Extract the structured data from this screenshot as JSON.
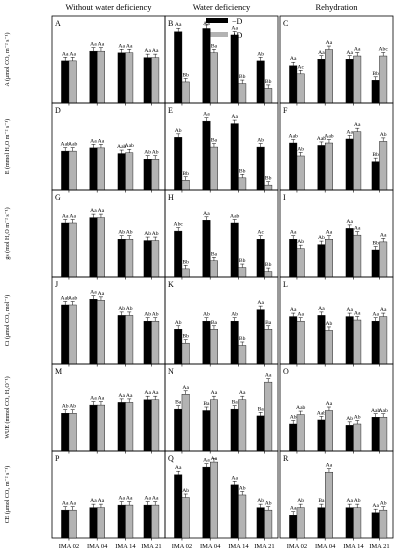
{
  "headers": [
    "Without water deficiency",
    "Water deficiency",
    "Rehydration"
  ],
  "legend": {
    "items": [
      {
        "label": "−D",
        "color": "#000000"
      },
      {
        "label": "+D",
        "color": "#b3b3b3"
      }
    ],
    "placement": "top"
  },
  "x_tick_labels": [
    "IMA 02",
    "IMA 04",
    "IMA 14",
    "IMA 21"
  ],
  "colors": {
    "minus_d": "#000000",
    "plus_d": "#b3b3b3"
  },
  "rows": [
    {
      "ylabel": "A (μmol CO₂ m⁻² s⁻¹)"
    },
    {
      "ylabel": "E (mmol H₂O m⁻² s⁻¹)"
    },
    {
      "ylabel": "gs (mol H₂O m⁻² s⁻¹)"
    },
    {
      "ylabel": "Ci (μmol CO₂ mol⁻¹)"
    },
    {
      "ylabel": "WUE (mmol CO₂ H₂O⁻¹)"
    },
    {
      "ylabel": "CE (μmol CO₂ m⁻² s⁻¹)"
    }
  ],
  "chart_data": [
    {
      "panel": "A",
      "type": "bar",
      "categories": [
        "IMA 02",
        "IMA 04",
        "IMA 14",
        "IMA 21"
      ],
      "series": [
        {
          "name": "−D",
          "values": [
            13,
            16,
            15.5,
            14
          ]
        },
        {
          "name": "+D",
          "values": [
            13,
            16,
            15.5,
            14
          ]
        }
      ],
      "labels": [
        [
          "Aa",
          "Aa"
        ],
        [
          "Aa",
          "Aa"
        ],
        [
          "Aa",
          "Aa"
        ],
        [
          "Aa",
          "Aa"
        ]
      ],
      "ylim": [
        0,
        25
      ]
    },
    {
      "panel": "B",
      "type": "bar",
      "categories": [
        "IMA 02",
        "IMA 04",
        "IMA 14",
        "IMA 21"
      ],
      "series": [
        {
          "name": "−D",
          "values": [
            22,
            23,
            21,
            13
          ]
        },
        {
          "name": "+D",
          "values": [
            6.5,
            15.5,
            6,
            4.5
          ]
        }
      ],
      "labels": [
        [
          "Aa",
          "Bb"
        ],
        [
          "Aa",
          "Ba"
        ],
        [
          "Aa",
          "Bb"
        ],
        [
          "Ab",
          "Bb"
        ]
      ],
      "ylim": [
        0,
        25
      ]
    },
    {
      "panel": "C",
      "type": "bar",
      "categories": [
        "IMA 02",
        "IMA 04",
        "IMA 14",
        "IMA 21"
      ],
      "series": [
        {
          "name": "−D",
          "values": [
            11.5,
            13.5,
            13.5,
            7
          ]
        },
        {
          "name": "+D",
          "values": [
            9,
            16.5,
            14.5,
            14.5
          ]
        }
      ],
      "labels": [
        [
          "Aa",
          "Ac"
        ],
        [
          "Aa",
          "Aa"
        ],
        [
          "Aa",
          "Aa"
        ],
        [
          "Bb",
          "Abc"
        ]
      ],
      "ylim": [
        0,
        25
      ]
    },
    {
      "panel": "D",
      "type": "bar",
      "categories": [
        "IMA 02",
        "IMA 04",
        "IMA 14",
        "IMA 21"
      ],
      "series": [
        {
          "name": "−D",
          "values": [
            4.8,
            5.2,
            4.5,
            3.8
          ]
        },
        {
          "name": "+D",
          "values": [
            4.8,
            5.2,
            4.6,
            3.8
          ]
        }
      ],
      "labels": [
        [
          "Aab",
          "Aab"
        ],
        [
          "Aa",
          "Aa"
        ],
        [
          "Aab",
          "Aab"
        ],
        [
          "Ab",
          "Ab"
        ]
      ],
      "ylim": [
        0,
        10
      ]
    },
    {
      "panel": "E",
      "type": "bar",
      "categories": [
        "IMA 02",
        "IMA 04",
        "IMA 14",
        "IMA 21"
      ],
      "series": [
        {
          "name": "−D",
          "values": [
            6.5,
            8.5,
            8.2,
            5.3
          ]
        },
        {
          "name": "+D",
          "values": [
            1.2,
            5.3,
            1.5,
            0.6
          ]
        }
      ],
      "labels": [
        [
          "Ab",
          "Bb"
        ],
        [
          "Aa",
          "Ba"
        ],
        [
          "Aa",
          "Bb"
        ],
        [
          "Ab",
          "Bb"
        ]
      ],
      "ylim": [
        0,
        10
      ]
    },
    {
      "panel": "F",
      "type": "bar",
      "categories": [
        "IMA 02",
        "IMA 04",
        "IMA 14",
        "IMA 21"
      ],
      "series": [
        {
          "name": "−D",
          "values": [
            5.8,
            5.5,
            6.3,
            3.5
          ]
        },
        {
          "name": "+D",
          "values": [
            4.2,
            5.8,
            7.2,
            6
          ]
        }
      ],
      "labels": [
        [
          "Aab",
          "Ab"
        ],
        [
          "Aab",
          "Aab"
        ],
        [
          "Aa",
          "Aa"
        ],
        [
          "Bb",
          "Ab"
        ]
      ],
      "ylim": [
        0,
        10
      ]
    },
    {
      "panel": "G",
      "type": "bar",
      "categories": [
        "IMA 02",
        "IMA 04",
        "IMA 14",
        "IMA 21"
      ],
      "series": [
        {
          "name": "−D",
          "values": [
            0.2,
            0.22,
            0.14,
            0.135
          ]
        },
        {
          "name": "+D",
          "values": [
            0.2,
            0.22,
            0.14,
            0.135
          ]
        }
      ],
      "labels": [
        [
          "Aa",
          "Aa"
        ],
        [
          "Aa",
          "Aa"
        ],
        [
          "Ab",
          "Ab"
        ],
        [
          "Ab",
          "Ab"
        ]
      ],
      "ylim": [
        0,
        0.3
      ]
    },
    {
      "panel": "H",
      "type": "bar",
      "categories": [
        "IMA 02",
        "IMA 04",
        "IMA 14",
        "IMA 21"
      ],
      "series": [
        {
          "name": "−D",
          "values": [
            0.17,
            0.21,
            0.2,
            0.14
          ]
        },
        {
          "name": "+D",
          "values": [
            0.03,
            0.06,
            0.035,
            0.02
          ]
        }
      ],
      "labels": [
        [
          "Abc",
          "Bb"
        ],
        [
          "Aa",
          "Ba"
        ],
        [
          "Aab",
          "Bb"
        ],
        [
          "Ac",
          "Bb"
        ]
      ],
      "ylim": [
        0,
        0.3
      ]
    },
    {
      "panel": "I",
      "type": "bar",
      "categories": [
        "IMA 02",
        "IMA 04",
        "IMA 14",
        "IMA 21"
      ],
      "series": [
        {
          "name": "−D",
          "values": [
            0.14,
            0.12,
            0.18,
            0.1
          ]
        },
        {
          "name": "+D",
          "values": [
            0.105,
            0.14,
            0.155,
            0.13
          ]
        }
      ],
      "labels": [
        [
          "Aa",
          "Ab"
        ],
        [
          "Ab",
          "Aa"
        ],
        [
          "Aa",
          "Aa"
        ],
        [
          "Bb",
          "Aa"
        ]
      ],
      "ylim": [
        0,
        0.3
      ]
    },
    {
      "panel": "J",
      "type": "bar",
      "categories": [
        "IMA 02",
        "IMA 04",
        "IMA 14",
        "IMA 21"
      ],
      "series": [
        {
          "name": "−D",
          "values": [
            255,
            280,
            210,
            185
          ]
        },
        {
          "name": "+D",
          "values": [
            255,
            275,
            210,
            185
          ]
        }
      ],
      "labels": [
        [
          "Aab",
          "Aab"
        ],
        [
          "Aa",
          "Aa"
        ],
        [
          "Ab",
          "Ab"
        ],
        [
          "Ab",
          "Ab"
        ]
      ],
      "ylim": [
        0,
        350
      ]
    },
    {
      "panel": "K",
      "type": "bar",
      "categories": [
        "IMA 02",
        "IMA 04",
        "IMA 14",
        "IMA 21"
      ],
      "series": [
        {
          "name": "−D",
          "values": [
            150,
            185,
            185,
            235
          ]
        },
        {
          "name": "+D",
          "values": [
            90,
            150,
            80,
            150
          ]
        }
      ],
      "labels": [
        [
          "Ab",
          "Bb"
        ],
        [
          "Ab",
          "Ba"
        ],
        [
          "Ab",
          "Bb"
        ],
        [
          "Aa",
          "Ba"
        ]
      ],
      "ylim": [
        0,
        350
      ]
    },
    {
      "panel": "L",
      "type": "bar",
      "categories": [
        "IMA 02",
        "IMA 04",
        "IMA 14",
        "IMA 21"
      ],
      "series": [
        {
          "name": "−D",
          "values": [
            205,
            210,
            205,
            185
          ]
        },
        {
          "name": "+D",
          "values": [
            185,
            145,
            190,
            205
          ]
        }
      ],
      "labels": [
        [
          "Aa",
          "Aa"
        ],
        [
          "Aa",
          "Ab"
        ],
        [
          "Aa",
          "Aa"
        ],
        [
          "Aa",
          "Aa"
        ]
      ],
      "ylim": [
        0,
        350
      ]
    },
    {
      "panel": "M",
      "type": "bar",
      "categories": [
        "IMA 02",
        "IMA 04",
        "IMA 14",
        "IMA 21"
      ],
      "series": [
        {
          "name": "−D",
          "values": [
            2.8,
            3.4,
            3.6,
            3.8
          ]
        },
        {
          "name": "+D",
          "values": [
            2.8,
            3.4,
            3.6,
            3.8
          ]
        }
      ],
      "labels": [
        [
          "Ab",
          "Ab"
        ],
        [
          "Aa",
          "Aa"
        ],
        [
          "Aa",
          "Aa"
        ],
        [
          "Aa",
          "Aa"
        ]
      ],
      "ylim": [
        0,
        6
      ]
    },
    {
      "panel": "N",
      "type": "bar",
      "categories": [
        "IMA 02",
        "IMA 04",
        "IMA 14",
        "IMA 21"
      ],
      "series": [
        {
          "name": "−D",
          "values": [
            3.1,
            3,
            3.1,
            2.6
          ]
        },
        {
          "name": "+D",
          "values": [
            4.2,
            3.8,
            3.8,
            5.1
          ]
        }
      ],
      "labels": [
        [
          "Ba",
          "Aa"
        ],
        [
          "Ba",
          "Aa"
        ],
        [
          "Ba",
          "Aa"
        ],
        [
          "Ba",
          "Aa"
        ]
      ],
      "ylim": [
        0,
        6
      ]
    },
    {
      "panel": "O",
      "type": "bar",
      "categories": [
        "IMA 02",
        "IMA 04",
        "IMA 14",
        "IMA 21"
      ],
      "series": [
        {
          "name": "−D",
          "values": [
            2,
            2.3,
            1.9,
            2.5
          ]
        },
        {
          "name": "+D",
          "values": [
            2.7,
            3,
            2,
            2.5
          ]
        }
      ],
      "labels": [
        [
          "Ab",
          "Aab"
        ],
        [
          "Aab",
          "Aa"
        ],
        [
          "Ab",
          "Ab"
        ],
        [
          "Aab",
          "Aab"
        ]
      ],
      "ylim": [
        0,
        6
      ]
    },
    {
      "panel": "P",
      "type": "bar",
      "categories": [
        "IMA 02",
        "IMA 04",
        "IMA 14",
        "IMA 21"
      ],
      "series": [
        {
          "name": "−D",
          "values": [
            0.055,
            0.06,
            0.065,
            0.065
          ]
        },
        {
          "name": "+D",
          "values": [
            0.055,
            0.06,
            0.065,
            0.065
          ]
        }
      ],
      "labels": [
        [
          "Aa",
          "Aa"
        ],
        [
          "Aa",
          "Aa"
        ],
        [
          "Aa",
          "Aa"
        ],
        [
          "Aa",
          "Aa"
        ]
      ],
      "ylim": [
        0,
        0.16
      ]
    },
    {
      "panel": "Q",
      "type": "bar",
      "categories": [
        "IMA 02",
        "IMA 04",
        "IMA 14",
        "IMA 21"
      ],
      "series": [
        {
          "name": "−D",
          "values": [
            0.125,
            0.14,
            0.105,
            0.06
          ]
        },
        {
          "name": "+D",
          "values": [
            0.08,
            0.15,
            0.085,
            0.055
          ]
        }
      ],
      "labels": [
        [
          "Aa",
          "Ab"
        ],
        [
          "Aa",
          "Aa"
        ],
        [
          "Aa",
          "Ab"
        ],
        [
          "Ab",
          "Ab"
        ]
      ],
      "ylim": [
        0,
        0.16
      ]
    },
    {
      "panel": "R",
      "type": "bar",
      "categories": [
        "IMA 02",
        "IMA 04",
        "IMA 14",
        "IMA 21"
      ],
      "series": [
        {
          "name": "−D",
          "values": [
            0.045,
            0.06,
            0.06,
            0.05
          ]
        },
        {
          "name": "+D",
          "values": [
            0.06,
            0.13,
            0.06,
            0.055
          ]
        }
      ],
      "labels": [
        [
          "Aa",
          "Ab"
        ],
        [
          "Ba",
          "Aa"
        ],
        [
          "Aa",
          "Ab"
        ],
        [
          "Aa",
          "Ab"
        ]
      ],
      "ylim": [
        0,
        0.16
      ]
    }
  ]
}
